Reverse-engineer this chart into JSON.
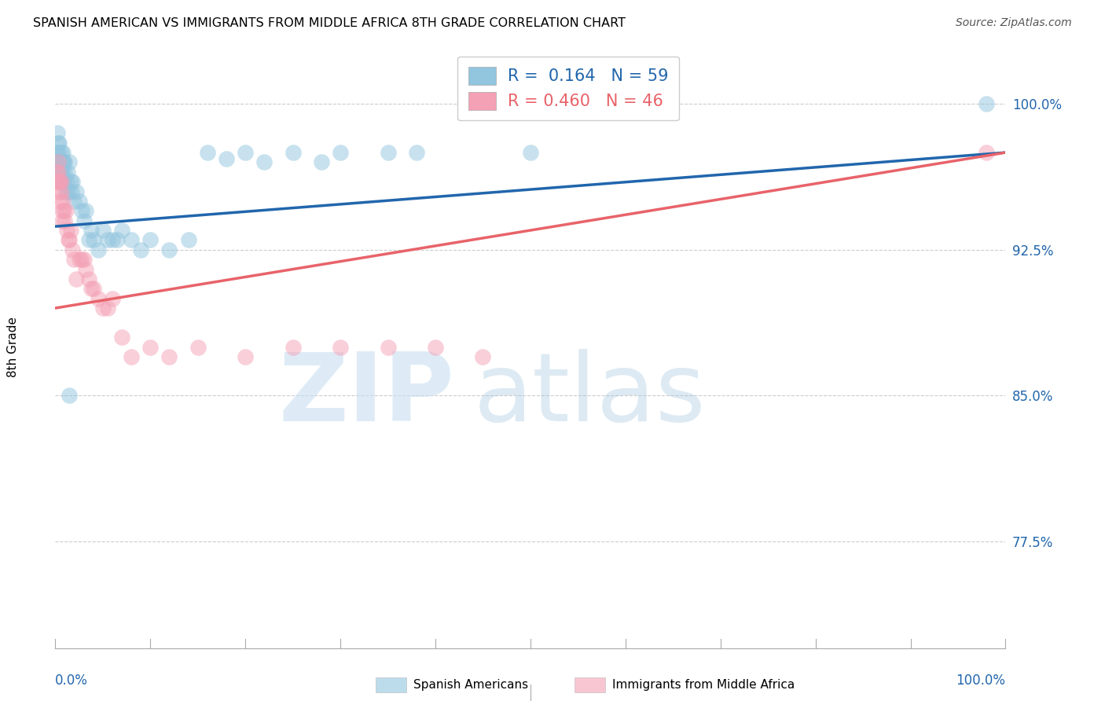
{
  "title": "SPANISH AMERICAN VS IMMIGRANTS FROM MIDDLE AFRICA 8TH GRADE CORRELATION CHART",
  "source": "Source: ZipAtlas.com",
  "ylabel": "8th Grade",
  "blue_R": 0.164,
  "blue_N": 59,
  "pink_R": 0.46,
  "pink_N": 46,
  "blue_color": "#92c5de",
  "pink_color": "#f4a0b5",
  "blue_line_color": "#2166ac",
  "pink_line_color": "#e8636a",
  "legend_label_blue": "Spanish Americans",
  "legend_label_pink": "Immigrants from Middle Africa",
  "xlim": [
    0.0,
    1.0
  ],
  "ylim": [
    0.72,
    1.03
  ],
  "y_tick_positions": [
    0.775,
    0.85,
    0.925,
    1.0
  ],
  "y_tick_labels": [
    "77.5%",
    "85.0%",
    "92.5%",
    "100.0%"
  ],
  "blue_scatter_x": [
    0.001,
    0.002,
    0.002,
    0.003,
    0.003,
    0.004,
    0.004,
    0.005,
    0.005,
    0.006,
    0.006,
    0.007,
    0.007,
    0.008,
    0.008,
    0.009,
    0.009,
    0.01,
    0.01,
    0.011,
    0.012,
    0.013,
    0.014,
    0.015,
    0.016,
    0.017,
    0.018,
    0.02,
    0.022,
    0.025,
    0.028,
    0.03,
    0.032,
    0.035,
    0.038,
    0.04,
    0.045,
    0.05,
    0.055,
    0.06,
    0.065,
    0.07,
    0.08,
    0.09,
    0.1,
    0.12,
    0.14,
    0.16,
    0.18,
    0.2,
    0.22,
    0.25,
    0.28,
    0.3,
    0.35,
    0.38,
    0.5,
    0.015,
    0.98
  ],
  "blue_scatter_y": [
    0.975,
    0.97,
    0.985,
    0.975,
    0.98,
    0.97,
    0.98,
    0.965,
    0.97,
    0.965,
    0.975,
    0.96,
    0.965,
    0.97,
    0.975,
    0.96,
    0.97,
    0.965,
    0.97,
    0.955,
    0.96,
    0.965,
    0.955,
    0.97,
    0.96,
    0.955,
    0.96,
    0.95,
    0.955,
    0.95,
    0.945,
    0.94,
    0.945,
    0.93,
    0.935,
    0.93,
    0.925,
    0.935,
    0.93,
    0.93,
    0.93,
    0.935,
    0.93,
    0.925,
    0.93,
    0.925,
    0.93,
    0.975,
    0.972,
    0.975,
    0.97,
    0.975,
    0.97,
    0.975,
    0.975,
    0.975,
    0.975,
    0.85,
    1.0
  ],
  "pink_scatter_x": [
    0.001,
    0.002,
    0.003,
    0.003,
    0.004,
    0.004,
    0.005,
    0.005,
    0.006,
    0.006,
    0.007,
    0.007,
    0.008,
    0.009,
    0.01,
    0.011,
    0.012,
    0.014,
    0.015,
    0.016,
    0.018,
    0.02,
    0.022,
    0.025,
    0.028,
    0.03,
    0.032,
    0.035,
    0.038,
    0.04,
    0.045,
    0.05,
    0.055,
    0.06,
    0.07,
    0.08,
    0.1,
    0.12,
    0.15,
    0.2,
    0.25,
    0.3,
    0.35,
    0.4,
    0.45,
    0.98
  ],
  "pink_scatter_y": [
    0.965,
    0.96,
    0.97,
    0.965,
    0.955,
    0.96,
    0.95,
    0.96,
    0.955,
    0.96,
    0.94,
    0.945,
    0.95,
    0.945,
    0.94,
    0.945,
    0.935,
    0.93,
    0.93,
    0.935,
    0.925,
    0.92,
    0.91,
    0.92,
    0.92,
    0.92,
    0.915,
    0.91,
    0.905,
    0.905,
    0.9,
    0.895,
    0.895,
    0.9,
    0.88,
    0.87,
    0.875,
    0.87,
    0.875,
    0.87,
    0.875,
    0.875,
    0.875,
    0.875,
    0.87,
    0.975
  ],
  "blue_trendline_x": [
    0.0,
    1.0
  ],
  "blue_trendline_y": [
    0.937,
    0.975
  ],
  "pink_trendline_x": [
    0.0,
    1.0
  ],
  "pink_trendline_y": [
    0.895,
    0.975
  ]
}
